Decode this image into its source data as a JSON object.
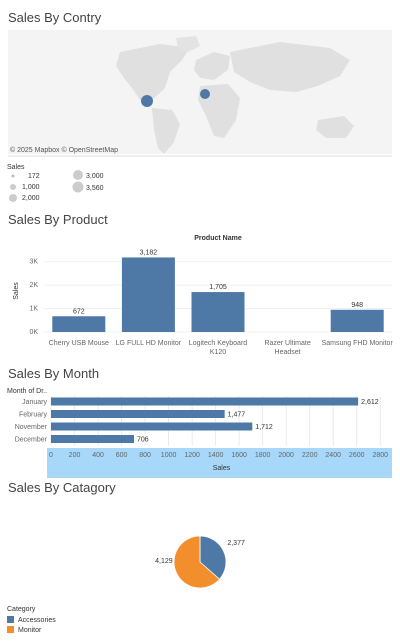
{
  "map": {
    "title": "Sales By Contry",
    "attribution": "© 2025 Mapbox © OpenStreetMap",
    "legend_title": "Sales",
    "legend_items": [
      "172",
      "1,000",
      "2,000",
      "3,000",
      "3,560"
    ]
  },
  "product": {
    "title": "Sales By Product",
    "header": "Product Name",
    "ylabel": "Sales"
  },
  "month": {
    "title": "Sales By Month",
    "row_header": "Month of Dr..",
    "xlabel": "Sales"
  },
  "category": {
    "title": "Sales By Catagory",
    "legend_title": "Category"
  },
  "colors": {
    "bar": "#4e79a7",
    "accessories": "#4e79a7",
    "monitor": "#f28e2b",
    "axis_band": "#a7d7f9"
  },
  "chart_data": [
    {
      "type": "map",
      "title": "Sales By Contry",
      "points": [
        {
          "region": "United States",
          "value": null
        },
        {
          "region": "Europe",
          "value": null
        }
      ],
      "size_legend": [
        "172",
        "1,000",
        "2,000",
        "3,000",
        "3,560"
      ]
    },
    {
      "type": "bar",
      "title": "Sales By Product",
      "header": "Product Name",
      "categories": [
        "Cherry USB Mouse",
        "LG FULL HD Monitor",
        "Logitech Keyboard K120",
        "Razer Ultimate Headset",
        "Samsung FHD Monitor"
      ],
      "category_lines": [
        [
          "Cherry USB Mouse"
        ],
        [
          "LG FULL HD Monitor"
        ],
        [
          "Logitech Keyboard",
          "K120"
        ],
        [
          "Razer Ultimate",
          "Headset"
        ],
        [
          "Samsung FHD Monitor"
        ]
      ],
      "values": [
        672,
        3182,
        1705,
        null,
        948
      ],
      "value_labels": [
        "672",
        "3,182",
        "1,705",
        "",
        "948"
      ],
      "ylabel": "Sales",
      "yticks": [
        "0K",
        "1K",
        "2K",
        "3K"
      ],
      "ylim": [
        0,
        3500
      ]
    },
    {
      "type": "bar",
      "orientation": "horizontal",
      "title": "Sales By Month",
      "row_header": "Month of Dr..",
      "categories": [
        "January",
        "February",
        "November",
        "December"
      ],
      "values": [
        2612,
        1477,
        1712,
        706
      ],
      "value_labels": [
        "2,612",
        "1,477",
        "1,712",
        "706"
      ],
      "xlabel": "Sales",
      "xticks": [
        "0",
        "200",
        "400",
        "600",
        "800",
        "1000",
        "1200",
        "1400",
        "1600",
        "1800",
        "2000",
        "2200",
        "2400",
        "2600",
        "2800"
      ],
      "xlim": [
        0,
        2900
      ]
    },
    {
      "type": "pie",
      "title": "Sales By Catagory",
      "legend_title": "Category",
      "labels": [
        "Accessories",
        "Monitor"
      ],
      "values": [
        2377,
        4129
      ],
      "value_labels": [
        "2,377",
        "4,129"
      ],
      "colors": [
        "#4e79a7",
        "#f28e2b"
      ]
    }
  ]
}
